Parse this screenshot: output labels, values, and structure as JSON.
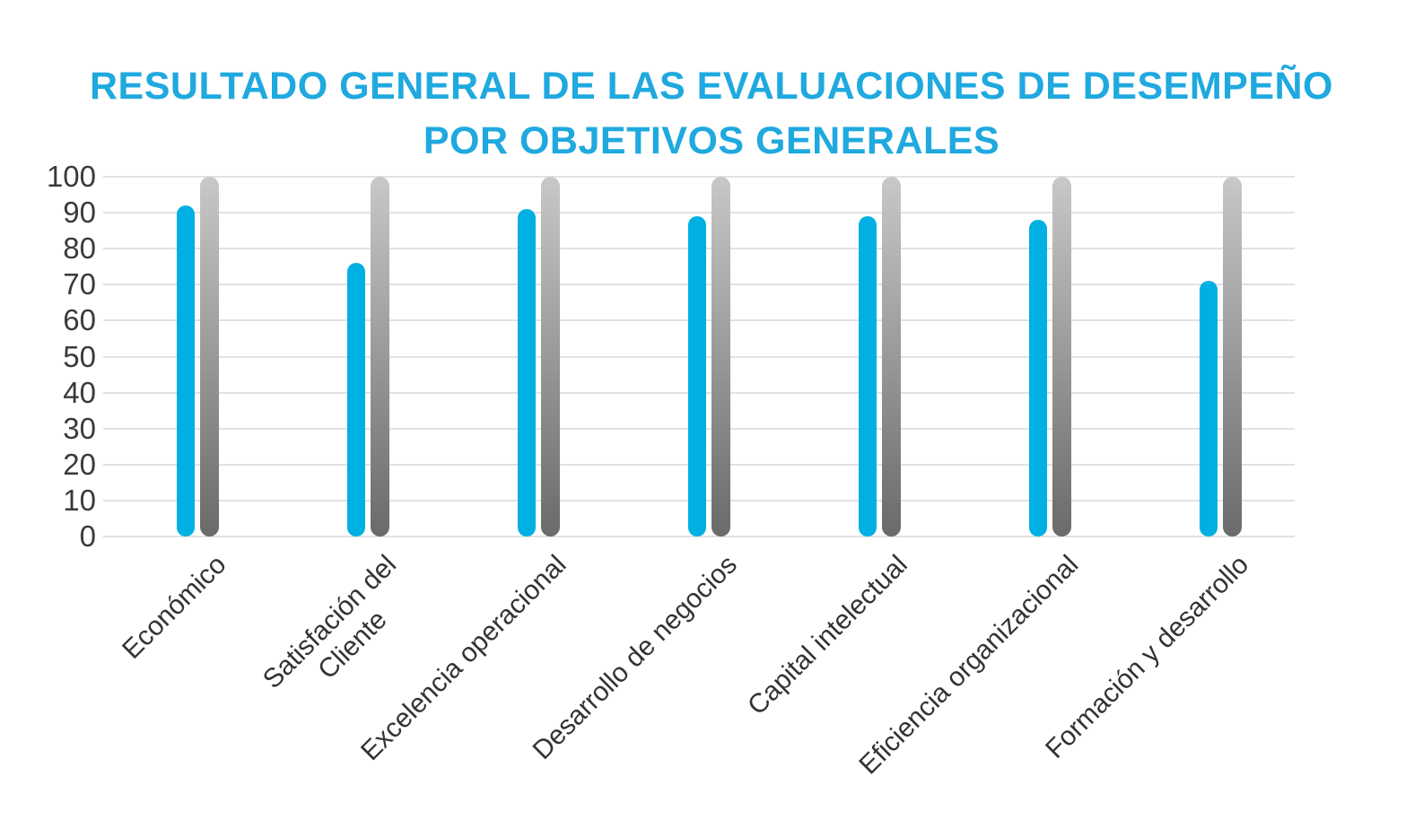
{
  "title": {
    "line1": "RESULTADO GENERAL DE LAS EVALUACIONES DE DESEMPEÑO",
    "line2": "POR OBJETIVOS GENERALES",
    "color": "#1FA9DF"
  },
  "chart_data": {
    "type": "bar",
    "title": "RESULTADO GENERAL DE LAS EVALUACIONES DE DESEMPEÑO POR OBJETIVOS GENERALES",
    "categories": [
      "Económico",
      "Satisfación del Cliente",
      "Excelencia operacional",
      "Desarrollo de negocios",
      "Capital intelectual",
      "Eficiencia organizacional",
      "Formación y desarrollo"
    ],
    "category_display_lines": [
      [
        "Económico"
      ],
      [
        "Satisfación del",
        "Cliente"
      ],
      [
        "Excelencia operacional"
      ],
      [
        "Desarrollo de negocios"
      ],
      [
        "Capital intelectual"
      ],
      [
        "Eficiencia organizacional"
      ],
      [
        "Formación y desarrollo"
      ]
    ],
    "series": [
      {
        "id": "resultado-azul",
        "color": "#00B0E3",
        "values": [
          92,
          76,
          91,
          89,
          89,
          88,
          71
        ]
      },
      {
        "id": "escala-gris",
        "gradient_top": "#C8C8C8",
        "gradient_bottom": "#6A6A6A",
        "values": [
          100,
          100,
          100,
          100,
          100,
          100,
          100
        ]
      }
    ],
    "xlabel": "",
    "ylabel": "",
    "ylim": [
      0,
      100
    ],
    "ytick_step": 10,
    "ytick_labels": [
      "0",
      "10",
      "20",
      "30",
      "40",
      "50",
      "60",
      "70",
      "80",
      "90",
      "100"
    ],
    "grid": true,
    "legend": "none",
    "bar_cap_style": "rounded",
    "x_label_rotation_deg": -45,
    "grid_color": "#E2E2E2",
    "y_tick_color": "#3A3A3A",
    "x_label_color": "#333333"
  }
}
